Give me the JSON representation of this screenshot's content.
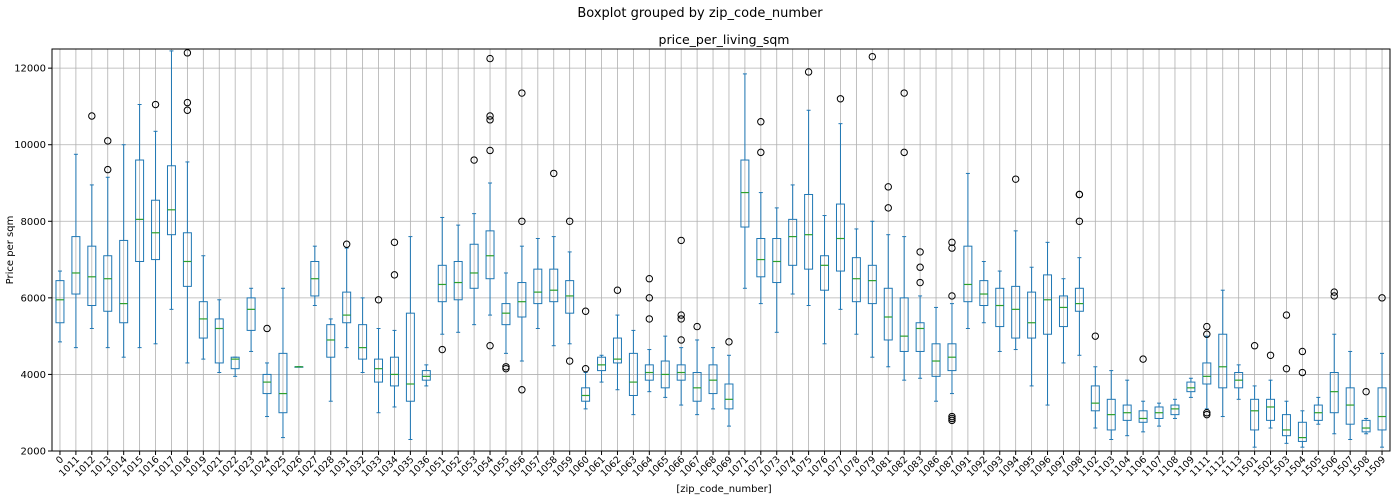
{
  "chart_data": {
    "type": "boxplot",
    "suptitle": "Boxplot grouped by zip_code_number",
    "title": "price_per_living_sqm",
    "xlabel": "[zip_code_number]",
    "ylabel": "Price per sqm",
    "ylim": [
      2000,
      12500
    ],
    "yticks": [
      2000,
      4000,
      6000,
      8000,
      10000,
      12000
    ],
    "grid": true,
    "colors": {
      "box": "#1f77b4",
      "median": "#2ca02c",
      "flier": "#000000",
      "grid": "#b0b0b0"
    },
    "categories": [
      "0",
      "1011",
      "1012",
      "1013",
      "1014",
      "1015",
      "1016",
      "1017",
      "1018",
      "1019",
      "1021",
      "1022",
      "1023",
      "1024",
      "1025",
      "1026",
      "1027",
      "1028",
      "1031",
      "1032",
      "1033",
      "1034",
      "1035",
      "1036",
      "1051",
      "1052",
      "1053",
      "1054",
      "1055",
      "1056",
      "1057",
      "1058",
      "1059",
      "1060",
      "1061",
      "1062",
      "1063",
      "1064",
      "1065",
      "1066",
      "1067",
      "1068",
      "1069",
      "1071",
      "1072",
      "1073",
      "1074",
      "1075",
      "1076",
      "1077",
      "1078",
      "1079",
      "1081",
      "1082",
      "1083",
      "1086",
      "1087",
      "1091",
      "1092",
      "1093",
      "1094",
      "1095",
      "1096",
      "1097",
      "1098",
      "1102",
      "1103",
      "1104",
      "1106",
      "1107",
      "1108",
      "1109",
      "1111",
      "1112",
      "1113",
      "1501",
      "1502",
      "1503",
      "1504",
      "1505",
      "1506",
      "1507",
      "1508",
      "1509"
    ],
    "boxes": [
      {
        "min": 4850,
        "q1": 5350,
        "median": 5950,
        "q3": 6450,
        "max": 6700,
        "fliers": []
      },
      {
        "min": 4700,
        "q1": 6100,
        "median": 6650,
        "q3": 7600,
        "max": 9750,
        "fliers": []
      },
      {
        "min": 5200,
        "q1": 5800,
        "median": 6550,
        "q3": 7350,
        "max": 8950,
        "fliers": [
          10750
        ]
      },
      {
        "min": 4700,
        "q1": 5650,
        "median": 6500,
        "q3": 7100,
        "max": 9150,
        "fliers": [
          9350,
          10100
        ]
      },
      {
        "min": 4450,
        "q1": 5350,
        "median": 5850,
        "q3": 7500,
        "max": 10000,
        "fliers": []
      },
      {
        "min": 4700,
        "q1": 6950,
        "median": 8050,
        "q3": 9600,
        "max": 11050,
        "fliers": []
      },
      {
        "min": 4800,
        "q1": 7000,
        "median": 7700,
        "q3": 8550,
        "max": 10350,
        "fliers": [
          11050
        ]
      },
      {
        "min": 5700,
        "q1": 7650,
        "median": 8300,
        "q3": 9450,
        "max": 12450,
        "fliers": []
      },
      {
        "min": 4300,
        "q1": 6300,
        "median": 6950,
        "q3": 7700,
        "max": 9550,
        "fliers": [
          10900,
          11100,
          12400
        ]
      },
      {
        "min": 4400,
        "q1": 4950,
        "median": 5450,
        "q3": 5900,
        "max": 7100,
        "fliers": []
      },
      {
        "min": 4050,
        "q1": 4300,
        "median": 5200,
        "q3": 5450,
        "max": 5950,
        "fliers": []
      },
      {
        "min": 3950,
        "q1": 4150,
        "median": 4400,
        "q3": 4450,
        "max": 4450,
        "fliers": []
      },
      {
        "min": 4600,
        "q1": 5150,
        "median": 5700,
        "q3": 6000,
        "max": 6250,
        "fliers": []
      },
      {
        "min": 2900,
        "q1": 3500,
        "median": 3800,
        "q3": 4000,
        "max": 4300,
        "fliers": [
          5200
        ]
      },
      {
        "min": 2350,
        "q1": 3000,
        "median": 3500,
        "q3": 4550,
        "max": 6250,
        "fliers": []
      },
      {
        "min": 4200,
        "q1": 4200,
        "median": 4200,
        "q3": 4200,
        "max": 4200,
        "fliers": []
      },
      {
        "min": 5800,
        "q1": 6050,
        "median": 6500,
        "q3": 6950,
        "max": 7350,
        "fliers": []
      },
      {
        "min": 3300,
        "q1": 4450,
        "median": 4900,
        "q3": 5300,
        "max": 5450,
        "fliers": []
      },
      {
        "min": 4700,
        "q1": 5350,
        "median": 5550,
        "q3": 6150,
        "max": 7300,
        "fliers": [
          7400
        ]
      },
      {
        "min": 4050,
        "q1": 4400,
        "median": 4700,
        "q3": 5300,
        "max": 6000,
        "fliers": []
      },
      {
        "min": 3000,
        "q1": 3800,
        "median": 4150,
        "q3": 4400,
        "max": 5200,
        "fliers": [
          5950
        ]
      },
      {
        "min": 3150,
        "q1": 3700,
        "median": 4000,
        "q3": 4450,
        "max": 5150,
        "fliers": [
          6600,
          7450
        ]
      },
      {
        "min": 2300,
        "q1": 3300,
        "median": 3750,
        "q3": 5600,
        "max": 7600,
        "fliers": []
      },
      {
        "min": 3700,
        "q1": 3850,
        "median": 3950,
        "q3": 4100,
        "max": 4250,
        "fliers": []
      },
      {
        "min": 5050,
        "q1": 5900,
        "median": 6350,
        "q3": 6850,
        "max": 8100,
        "fliers": [
          4650
        ]
      },
      {
        "min": 5100,
        "q1": 5950,
        "median": 6400,
        "q3": 6950,
        "max": 7900,
        "fliers": []
      },
      {
        "min": 5300,
        "q1": 6250,
        "median": 6650,
        "q3": 7400,
        "max": 8200,
        "fliers": [
          9600
        ]
      },
      {
        "min": 5550,
        "q1": 6500,
        "median": 7100,
        "q3": 7750,
        "max": 9000,
        "fliers": [
          4750,
          9850,
          10650,
          10750,
          12250
        ]
      },
      {
        "min": 4550,
        "q1": 5300,
        "median": 5600,
        "q3": 5850,
        "max": 6650,
        "fliers": [
          4150,
          4200
        ]
      },
      {
        "min": 4350,
        "q1": 5500,
        "median": 5900,
        "q3": 6400,
        "max": 7350,
        "fliers": [
          3600,
          8000,
          11350
        ]
      },
      {
        "min": 5200,
        "q1": 5850,
        "median": 6150,
        "q3": 6750,
        "max": 7550,
        "fliers": []
      },
      {
        "min": 4750,
        "q1": 5900,
        "median": 6200,
        "q3": 6750,
        "max": 7600,
        "fliers": [
          9250
        ]
      },
      {
        "min": 4800,
        "q1": 5600,
        "median": 6050,
        "q3": 6450,
        "max": 7200,
        "fliers": [
          4350,
          8000
        ]
      },
      {
        "min": 3100,
        "q1": 3300,
        "median": 3450,
        "q3": 3650,
        "max": 4050,
        "fliers": [
          4150,
          5650
        ]
      },
      {
        "min": 3800,
        "q1": 4100,
        "median": 4250,
        "q3": 4450,
        "max": 4500,
        "fliers": []
      },
      {
        "min": 3600,
        "q1": 4300,
        "median": 4400,
        "q3": 4950,
        "max": 5550,
        "fliers": [
          6200
        ]
      },
      {
        "min": 2950,
        "q1": 3450,
        "median": 3800,
        "q3": 4550,
        "max": 5150,
        "fliers": []
      },
      {
        "min": 3550,
        "q1": 3850,
        "median": 4050,
        "q3": 4250,
        "max": 4650,
        "fliers": [
          5450,
          6000,
          6500
        ]
      },
      {
        "min": 3400,
        "q1": 3650,
        "median": 4000,
        "q3": 4350,
        "max": 5000,
        "fliers": []
      },
      {
        "min": 3200,
        "q1": 3850,
        "median": 4050,
        "q3": 4250,
        "max": 4700,
        "fliers": [
          4900,
          5450,
          5550,
          7500
        ]
      },
      {
        "min": 2950,
        "q1": 3300,
        "median": 3650,
        "q3": 4050,
        "max": 4900,
        "fliers": [
          5250
        ]
      },
      {
        "min": 3100,
        "q1": 3500,
        "median": 3850,
        "q3": 4250,
        "max": 4700,
        "fliers": []
      },
      {
        "min": 2650,
        "q1": 3100,
        "median": 3350,
        "q3": 3750,
        "max": 4500,
        "fliers": [
          4850
        ]
      },
      {
        "min": 6250,
        "q1": 7850,
        "median": 8750,
        "q3": 9600,
        "max": 11850,
        "fliers": []
      },
      {
        "min": 5850,
        "q1": 6550,
        "median": 7000,
        "q3": 7550,
        "max": 8750,
        "fliers": [
          9800,
          10600
        ]
      },
      {
        "min": 5100,
        "q1": 6400,
        "median": 6950,
        "q3": 7550,
        "max": 8350,
        "fliers": []
      },
      {
        "min": 6100,
        "q1": 6850,
        "median": 7600,
        "q3": 8050,
        "max": 8950,
        "fliers": []
      },
      {
        "min": 5800,
        "q1": 6750,
        "median": 7650,
        "q3": 8700,
        "max": 10900,
        "fliers": [
          11900
        ]
      },
      {
        "min": 4800,
        "q1": 6200,
        "median": 6850,
        "q3": 7100,
        "max": 8150,
        "fliers": []
      },
      {
        "min": 5700,
        "q1": 6700,
        "median": 7550,
        "q3": 8450,
        "max": 10550,
        "fliers": [
          11200
        ]
      },
      {
        "min": 5050,
        "q1": 5900,
        "median": 6500,
        "q3": 7050,
        "max": 7800,
        "fliers": []
      },
      {
        "min": 4450,
        "q1": 5850,
        "median": 6450,
        "q3": 6850,
        "max": 8000,
        "fliers": [
          12300
        ]
      },
      {
        "min": 4200,
        "q1": 4900,
        "median": 5500,
        "q3": 6250,
        "max": 7650,
        "fliers": [
          8350,
          8900
        ]
      },
      {
        "min": 3850,
        "q1": 4600,
        "median": 5000,
        "q3": 6000,
        "max": 7600,
        "fliers": [
          9800,
          11350
        ]
      },
      {
        "min": 3900,
        "q1": 4600,
        "median": 5200,
        "q3": 5350,
        "max": 6050,
        "fliers": [
          6400,
          6800,
          7200
        ]
      },
      {
        "min": 3300,
        "q1": 3950,
        "median": 4350,
        "q3": 4800,
        "max": 5750,
        "fliers": []
      },
      {
        "min": 3500,
        "q1": 4100,
        "median": 4450,
        "q3": 4800,
        "max": 5850,
        "fliers": [
          2800,
          2850,
          2900,
          6050,
          7300,
          7450
        ]
      },
      {
        "min": 5200,
        "q1": 5900,
        "median": 6350,
        "q3": 7350,
        "max": 9250,
        "fliers": []
      },
      {
        "min": 5350,
        "q1": 5800,
        "median": 6100,
        "q3": 6450,
        "max": 6950,
        "fliers": []
      },
      {
        "min": 4600,
        "q1": 5250,
        "median": 5800,
        "q3": 6250,
        "max": 6700,
        "fliers": []
      },
      {
        "min": 4650,
        "q1": 4950,
        "median": 5700,
        "q3": 6300,
        "max": 7750,
        "fliers": [
          9100
        ]
      },
      {
        "min": 3700,
        "q1": 4950,
        "median": 5350,
        "q3": 6150,
        "max": 6800,
        "fliers": []
      },
      {
        "min": 3200,
        "q1": 5050,
        "median": 5950,
        "q3": 6600,
        "max": 7450,
        "fliers": []
      },
      {
        "min": 4300,
        "q1": 5250,
        "median": 5750,
        "q3": 6050,
        "max": 6500,
        "fliers": []
      },
      {
        "min": 4500,
        "q1": 5650,
        "median": 5850,
        "q3": 6250,
        "max": 7050,
        "fliers": [
          8000,
          8700,
          8700
        ]
      },
      {
        "min": 2600,
        "q1": 3050,
        "median": 3250,
        "q3": 3700,
        "max": 4200,
        "fliers": [
          5000
        ]
      },
      {
        "min": 2300,
        "q1": 2550,
        "median": 2950,
        "q3": 3350,
        "max": 4100,
        "fliers": []
      },
      {
        "min": 2400,
        "q1": 2800,
        "median": 3000,
        "q3": 3200,
        "max": 3850,
        "fliers": []
      },
      {
        "min": 2500,
        "q1": 2750,
        "median": 2850,
        "q3": 3050,
        "max": 3300,
        "fliers": [
          4400
        ]
      },
      {
        "min": 2650,
        "q1": 2850,
        "median": 3000,
        "q3": 3150,
        "max": 3250,
        "fliers": []
      },
      {
        "min": 2850,
        "q1": 2950,
        "median": 3100,
        "q3": 3200,
        "max": 3350,
        "fliers": []
      },
      {
        "min": 3400,
        "q1": 3550,
        "median": 3650,
        "q3": 3800,
        "max": 3900,
        "fliers": []
      },
      {
        "min": 3100,
        "q1": 3750,
        "median": 3950,
        "q3": 4300,
        "max": 5000,
        "fliers": [
          2950,
          3000,
          5050,
          5250
        ]
      },
      {
        "min": 2900,
        "q1": 3650,
        "median": 4200,
        "q3": 5050,
        "max": 6200,
        "fliers": []
      },
      {
        "min": 3350,
        "q1": 3650,
        "median": 3850,
        "q3": 4050,
        "max": 4250,
        "fliers": []
      },
      {
        "min": 2100,
        "q1": 2550,
        "median": 3050,
        "q3": 3350,
        "max": 3700,
        "fliers": [
          4750
        ]
      },
      {
        "min": 2600,
        "q1": 2800,
        "median": 3150,
        "q3": 3350,
        "max": 3850,
        "fliers": [
          4500
        ]
      },
      {
        "min": 2200,
        "q1": 2400,
        "median": 2550,
        "q3": 2950,
        "max": 3300,
        "fliers": [
          4150,
          5550
        ]
      },
      {
        "min": 2100,
        "q1": 2250,
        "median": 2350,
        "q3": 2750,
        "max": 3050,
        "fliers": [
          4050,
          4600
        ]
      },
      {
        "min": 2700,
        "q1": 2800,
        "median": 3000,
        "q3": 3200,
        "max": 3400,
        "fliers": []
      },
      {
        "min": 2450,
        "q1": 3000,
        "median": 3550,
        "q3": 4050,
        "max": 5050,
        "fliers": [
          6050,
          6150
        ]
      },
      {
        "min": 2300,
        "q1": 2700,
        "median": 3200,
        "q3": 3650,
        "max": 4600,
        "fliers": []
      },
      {
        "min": 2450,
        "q1": 2500,
        "median": 2600,
        "q3": 2800,
        "max": 2850,
        "fliers": [
          3550
        ]
      },
      {
        "min": 2100,
        "q1": 2550,
        "median": 2900,
        "q3": 3650,
        "max": 4550,
        "fliers": [
          6000
        ]
      }
    ]
  }
}
